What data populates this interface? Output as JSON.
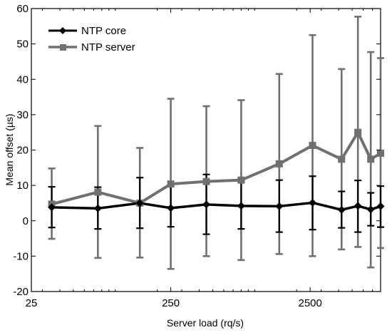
{
  "chart_data": {
    "type": "line",
    "xlabel": "Server load (rq/s)",
    "ylabel": "Mean offset (µs)",
    "xscale": "log",
    "xlim": [
      25,
      8000
    ],
    "ylim": [
      -20,
      60
    ],
    "xticks": [
      {
        "value": 25,
        "label": "25"
      },
      {
        "value": 250,
        "label": "250"
      },
      {
        "value": 2500,
        "label": "2500"
      }
    ],
    "yticks": [
      {
        "value": -20,
        "label": "-20"
      },
      {
        "value": -10,
        "label": "-10"
      },
      {
        "value": 0,
        "label": "0"
      },
      {
        "value": 10,
        "label": "10"
      },
      {
        "value": 20,
        "label": "20"
      },
      {
        "value": 30,
        "label": "30"
      },
      {
        "value": 40,
        "label": "40"
      },
      {
        "value": 50,
        "label": "50"
      },
      {
        "value": 60,
        "label": "60"
      }
    ],
    "grid": false,
    "legend": "top-left",
    "x": [
      35,
      75,
      150,
      250,
      450,
      800,
      1500,
      2600,
      4200,
      5500,
      6800,
      8000
    ],
    "series": [
      {
        "name": "NTP core",
        "color": "#000000",
        "marker": "diamond",
        "y": [
          3.8,
          3.5,
          5.0,
          3.6,
          4.6,
          4.2,
          4.1,
          5.1,
          3.1,
          4.2,
          3.2,
          4.1
        ],
        "yerr_low": [
          -1.9,
          -2.3,
          -2.1,
          -1.7,
          -3.8,
          -2.3,
          -3.2,
          -2.5,
          -2.0,
          -3.2,
          -1.4,
          -1.8
        ],
        "yerr_high": [
          9.6,
          9.5,
          12.2,
          9.7,
          13.1,
          10.9,
          11.5,
          12.6,
          8.3,
          11.4,
          7.9,
          9.8
        ]
      },
      {
        "name": "NTP server",
        "color": "#707070",
        "marker": "square",
        "y": [
          4.7,
          8.1,
          5.0,
          10.4,
          11.1,
          11.5,
          16.1,
          21.3,
          17.4,
          25.0,
          17.4,
          19.1
        ],
        "yerr_low": [
          -5.1,
          -10.5,
          -10.4,
          -13.6,
          -10.0,
          -11.1,
          -9.4,
          -10.0,
          -8.1,
          -7.4,
          -13.2,
          -7.7
        ],
        "yerr_high": [
          14.8,
          26.8,
          20.6,
          34.5,
          32.4,
          34.1,
          41.5,
          52.5,
          42.9,
          57.7,
          47.7,
          46.0
        ]
      }
    ]
  }
}
